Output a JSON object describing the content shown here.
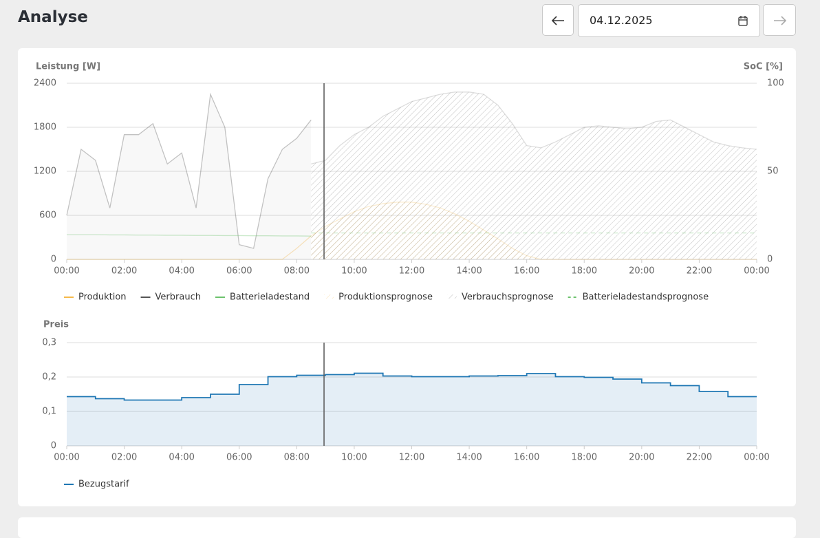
{
  "header": {
    "title": "Analyse",
    "date": "04.12.2025"
  },
  "chart_data": [
    {
      "type": "line",
      "y_label": "Leistung [W]",
      "y2_label": "SoC [%]",
      "x": [
        0,
        0.5,
        1,
        1.5,
        2,
        2.5,
        3,
        3.5,
        4,
        4.5,
        5,
        5.5,
        6,
        6.5,
        7,
        7.5,
        8,
        8.5,
        9,
        9.5,
        10,
        10.5,
        11,
        11.5,
        12,
        12.5,
        13,
        13.5,
        14,
        14.5,
        15,
        15.5,
        16,
        16.5,
        17,
        17.5,
        18,
        18.5,
        19,
        19.5,
        20,
        20.5,
        21,
        21.5,
        22,
        22.5,
        23,
        23.5,
        24
      ],
      "xlim": [
        0,
        24
      ],
      "xticks": [
        {
          "value": 0,
          "label": "00:00"
        },
        {
          "value": 2,
          "label": "02:00"
        },
        {
          "value": 4,
          "label": "04:00"
        },
        {
          "value": 6,
          "label": "06:00"
        },
        {
          "value": 8,
          "label": "08:00"
        },
        {
          "value": 10,
          "label": "10:00"
        },
        {
          "value": 12,
          "label": "12:00"
        },
        {
          "value": 14,
          "label": "14:00"
        },
        {
          "value": 16,
          "label": "16:00"
        },
        {
          "value": 18,
          "label": "18:00"
        },
        {
          "value": 20,
          "label": "20:00"
        },
        {
          "value": 22,
          "label": "22:00"
        },
        {
          "value": 24,
          "label": "00:00"
        }
      ],
      "ylim": [
        0,
        2400
      ],
      "yticks": [
        0,
        600,
        1200,
        1800,
        2400
      ],
      "y2lim": [
        0,
        100
      ],
      "y2ticks": [
        0,
        50,
        100
      ],
      "grid": true,
      "now": 8.95,
      "series": [
        {
          "name": "Produktion",
          "color": "#f5b94a",
          "values": [
            0,
            0,
            0,
            0,
            0,
            0,
            0,
            0,
            0,
            0,
            0,
            0,
            0,
            0,
            0,
            0,
            150,
            320,
            null,
            null,
            null,
            null,
            null,
            null,
            null,
            null,
            null,
            null,
            null,
            null,
            null,
            null,
            null,
            null,
            null,
            null,
            null,
            null,
            null,
            null,
            null,
            null,
            null,
            null,
            null,
            null,
            null,
            null,
            null
          ]
        },
        {
          "name": "Verbrauch",
          "color": "#555555",
          "area": true,
          "values": [
            600,
            1500,
            1350,
            700,
            1700,
            1700,
            1850,
            1300,
            1450,
            700,
            2250,
            1800,
            200,
            150,
            1100,
            1500,
            1650,
            1900,
            null,
            null,
            null,
            null,
            null,
            null,
            null,
            null,
            null,
            null,
            null,
            null,
            null,
            null,
            null,
            null,
            null,
            null,
            null,
            null,
            null,
            null,
            null,
            null,
            null,
            null,
            null,
            null,
            null,
            null,
            null
          ]
        },
        {
          "name": "Batterieladestand",
          "color": "#6cc26c",
          "axis": "y2",
          "values": [
            14,
            14,
            14,
            13.9,
            13.9,
            13.8,
            13.8,
            13.7,
            13.7,
            13.6,
            13.6,
            13.5,
            13.5,
            13.4,
            13.4,
            13.3,
            13.3,
            13.2,
            null,
            null,
            null,
            null,
            null,
            null,
            null,
            null,
            null,
            null,
            null,
            null,
            null,
            null,
            null,
            null,
            null,
            null,
            null,
            null,
            null,
            null,
            null,
            null,
            null,
            null,
            null,
            null,
            null,
            null,
            null
          ]
        },
        {
          "name": "Produktionsprognose",
          "color": "#f5b94a",
          "hatched": true,
          "values": [
            null,
            null,
            null,
            null,
            null,
            null,
            null,
            null,
            null,
            null,
            null,
            null,
            null,
            null,
            null,
            null,
            null,
            320,
            450,
            550,
            650,
            720,
            760,
            780,
            780,
            750,
            700,
            620,
            520,
            400,
            280,
            150,
            50,
            0,
            0,
            0,
            0,
            0,
            0,
            0,
            0,
            0,
            0,
            0,
            0,
            0,
            0,
            0,
            0
          ]
        },
        {
          "name": "Verbrauchsprognose",
          "color": "#777777",
          "hatched": true,
          "values": [
            null,
            null,
            null,
            null,
            null,
            null,
            null,
            null,
            null,
            null,
            null,
            null,
            null,
            null,
            null,
            null,
            null,
            1300,
            1350,
            1550,
            1700,
            1800,
            1950,
            2050,
            2150,
            2200,
            2250,
            2280,
            2280,
            2250,
            2100,
            1850,
            1550,
            1520,
            1600,
            1700,
            1800,
            1820,
            1800,
            1780,
            1800,
            1880,
            1900,
            1800,
            1700,
            1600,
            1550,
            1520,
            1500
          ]
        },
        {
          "name": "Batterieladestandsprognose",
          "color": "#6cc26c",
          "axis": "y2",
          "dashed": true,
          "values": [
            null,
            null,
            null,
            null,
            null,
            null,
            null,
            null,
            null,
            null,
            null,
            null,
            null,
            null,
            null,
            null,
            null,
            15,
            15,
            15,
            15,
            15,
            15,
            15,
            15,
            15,
            15,
            15,
            15,
            15,
            15,
            15,
            15,
            15,
            15,
            15,
            15,
            15,
            15,
            15,
            15,
            15,
            15,
            15,
            15,
            15,
            15,
            15,
            15
          ]
        }
      ]
    },
    {
      "type": "step",
      "y_label": "Preis",
      "x": [
        0,
        1,
        2,
        3,
        4,
        5,
        6,
        7,
        8,
        9,
        10,
        11,
        12,
        13,
        14,
        15,
        16,
        17,
        18,
        19,
        20,
        21,
        22,
        23
      ],
      "xlim": [
        0,
        24
      ],
      "xticks": [
        {
          "value": 0,
          "label": "00:00"
        },
        {
          "value": 2,
          "label": "02:00"
        },
        {
          "value": 4,
          "label": "04:00"
        },
        {
          "value": 6,
          "label": "06:00"
        },
        {
          "value": 8,
          "label": "08:00"
        },
        {
          "value": 10,
          "label": "10:00"
        },
        {
          "value": 12,
          "label": "12:00"
        },
        {
          "value": 14,
          "label": "14:00"
        },
        {
          "value": 16,
          "label": "16:00"
        },
        {
          "value": 18,
          "label": "18:00"
        },
        {
          "value": 20,
          "label": "20:00"
        },
        {
          "value": 22,
          "label": "22:00"
        },
        {
          "value": 24,
          "label": "00:00"
        }
      ],
      "ylim": [
        0,
        0.3
      ],
      "yticks": [
        0,
        {
          "value": 0.1,
          "label": "0,1"
        },
        {
          "value": 0.2,
          "label": "0,2"
        },
        {
          "value": 0.3,
          "label": "0,3"
        }
      ],
      "grid": true,
      "now": 8.95,
      "series": [
        {
          "name": "Bezugstarif",
          "color": "#1f77b4",
          "area": true,
          "values": [
            0.143,
            0.137,
            0.133,
            0.133,
            0.14,
            0.15,
            0.178,
            0.201,
            0.205,
            0.207,
            0.211,
            0.203,
            0.201,
            0.201,
            0.203,
            0.204,
            0.21,
            0.201,
            0.199,
            0.194,
            0.183,
            0.175,
            0.158,
            0.143
          ]
        }
      ]
    }
  ]
}
